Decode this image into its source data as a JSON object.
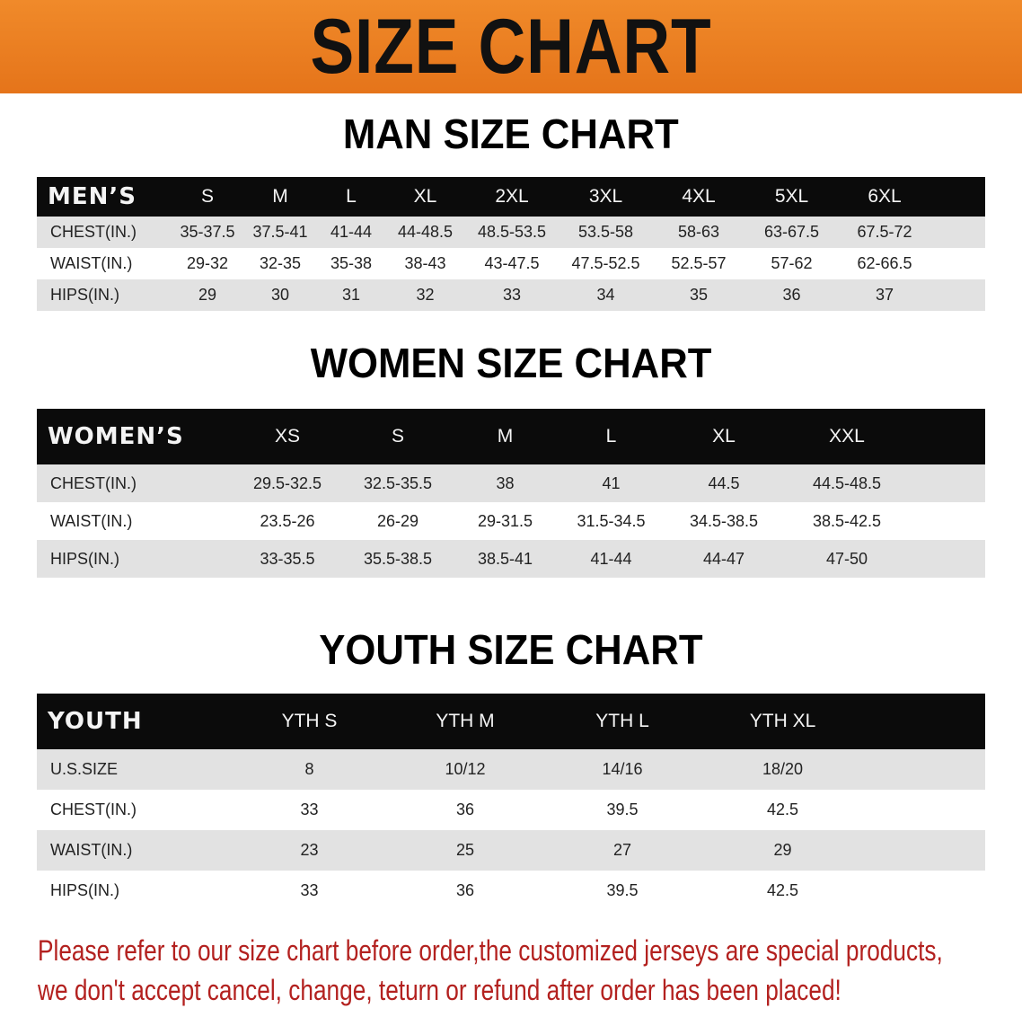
{
  "banner": {
    "title": "SIZE CHART",
    "color": "#e9791c"
  },
  "men": {
    "title": "MAN SIZE CHART",
    "header": [
      "MEN’S",
      "S",
      "M",
      "L",
      "XL",
      "2XL",
      "3XL",
      "4XL",
      "5XL",
      "6XL"
    ],
    "rows": [
      [
        "CHEST(IN.)",
        "35-37.5",
        "37.5-41",
        "41-44",
        "44-48.5",
        "48.5-53.5",
        "53.5-58",
        "58-63",
        "63-67.5",
        "67.5-72"
      ],
      [
        "WAIST(IN.)",
        "29-32",
        "32-35",
        "35-38",
        "38-43",
        "43-47.5",
        "47.5-52.5",
        "52.5-57",
        "57-62",
        "62-66.5"
      ],
      [
        "HIPS(IN.)",
        "29",
        "30",
        "31",
        "32",
        "33",
        "34",
        "35",
        "36",
        "37"
      ]
    ]
  },
  "women": {
    "title": "WOMEN SIZE CHART",
    "header": [
      "WOMEN’S",
      "XS",
      "S",
      "M",
      "L",
      "XL",
      "XXL"
    ],
    "rows": [
      [
        "CHEST(IN.)",
        "29.5-32.5",
        "32.5-35.5",
        "38",
        "41",
        "44.5",
        "44.5-48.5"
      ],
      [
        "WAIST(IN.)",
        "23.5-26",
        "26-29",
        "29-31.5",
        "31.5-34.5",
        "34.5-38.5",
        "38.5-42.5"
      ],
      [
        "HIPS(IN.)",
        "33-35.5",
        "35.5-38.5",
        "38.5-41",
        "41-44",
        "44-47",
        "47-50"
      ]
    ]
  },
  "youth": {
    "title": "YOUTH SIZE CHART",
    "header": [
      "YOUTH",
      "YTH S",
      "YTH M",
      "YTH L",
      "YTH XL"
    ],
    "rows": [
      [
        "U.S.SIZE",
        "8",
        "10/12",
        "14/16",
        "18/20"
      ],
      [
        "CHEST(IN.)",
        "33",
        "36",
        "39.5",
        "42.5"
      ],
      [
        "WAIST(IN.)",
        "23",
        "25",
        "27",
        "29"
      ],
      [
        "HIPS(IN.)",
        "33",
        "36",
        "39.5",
        "42.5"
      ]
    ]
  },
  "notice": {
    "line1": "Please refer to our size chart before order,the customized jerseys are special products,",
    "line2": "we don't accept cancel, change, teturn or refund after order has been placed!",
    "color": "#b3211f"
  }
}
